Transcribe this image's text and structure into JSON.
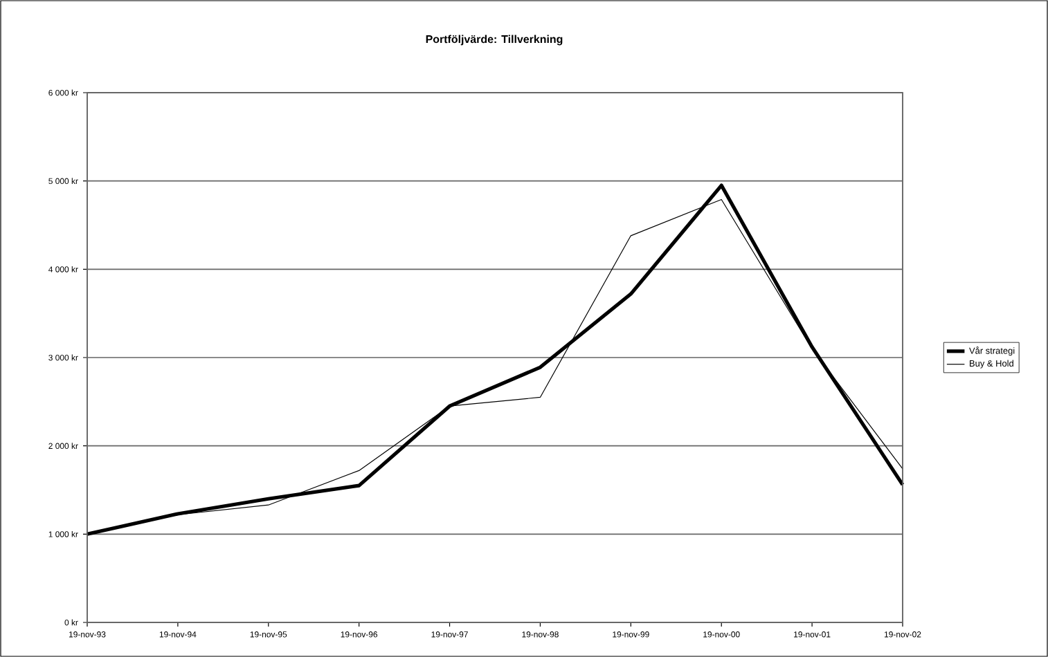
{
  "chart_data": {
    "type": "line",
    "title": "Portföljvärde: Tillverkning",
    "categories": [
      "19-nov-93",
      "19-nov-94",
      "19-nov-95",
      "19-nov-96",
      "19-nov-97",
      "19-nov-98",
      "19-nov-99",
      "19-nov-00",
      "19-nov-01",
      "19-nov-02"
    ],
    "series": [
      {
        "name": "Vår strategi",
        "color": "#000000",
        "values": [
          1000,
          1230,
          1400,
          1550,
          2450,
          2890,
          3720,
          4950,
          3120,
          1560
        ]
      },
      {
        "name": "Buy & Hold",
        "color": "#000000",
        "values": [
          1000,
          1220,
          1330,
          1720,
          2450,
          2550,
          4380,
          4790,
          3100,
          1740
        ]
      }
    ],
    "ylim": [
      0,
      6000
    ],
    "yticks": [
      {
        "value": 0,
        "label": "0 kr"
      },
      {
        "value": 1000,
        "label": "1 000 kr"
      },
      {
        "value": 2000,
        "label": "2 000 kr"
      },
      {
        "value": 3000,
        "label": "3 000 kr"
      },
      {
        "value": 4000,
        "label": "4 000 kr"
      },
      {
        "value": 5000,
        "label": "5 000 kr"
      },
      {
        "value": 6000,
        "label": "6 000 kr"
      }
    ],
    "grid": "y",
    "legend": "right",
    "marker": "none",
    "line_style": "solid"
  }
}
